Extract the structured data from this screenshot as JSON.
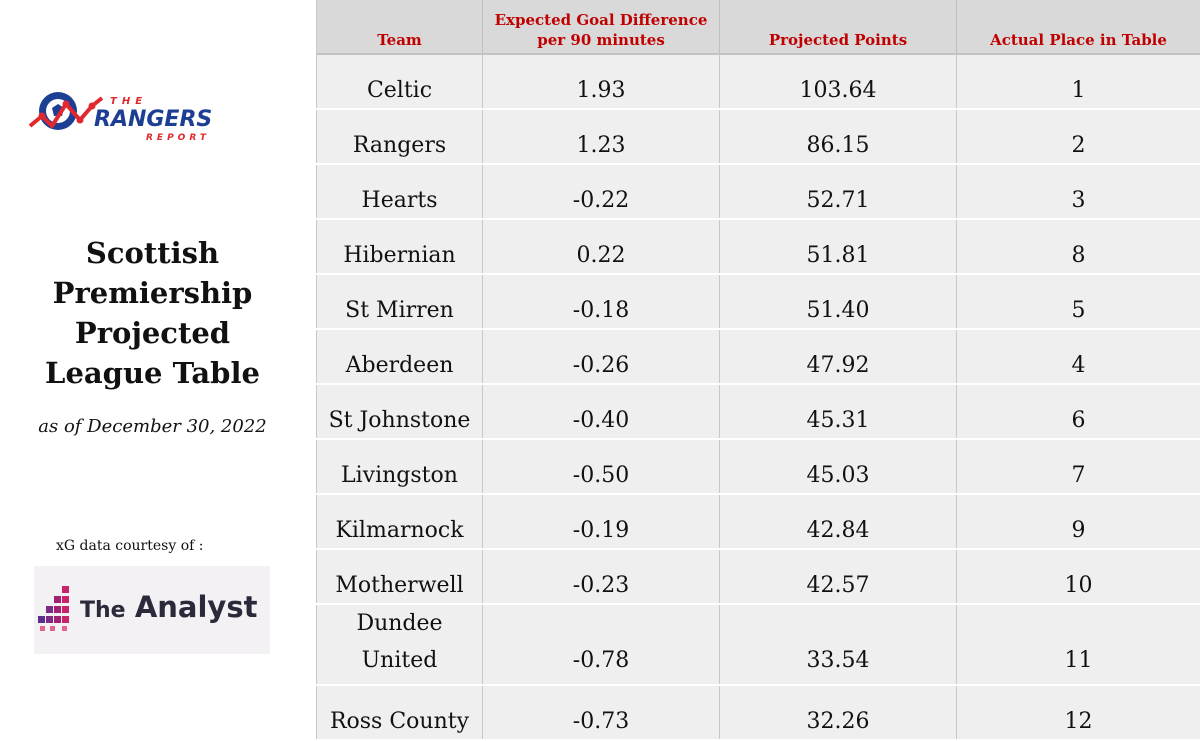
{
  "sidebar": {
    "logo": {
      "line1": "THE",
      "line2": "RANGERS",
      "line3": "REPORT"
    },
    "title_lines": [
      "Scottish",
      "Premiership",
      "Projected",
      "League Table"
    ],
    "subtitle": "as of December 30, 2022",
    "credit": "xG data courtesy of :",
    "analyst_logo": {
      "word1": "The",
      "word2": "Analyst"
    }
  },
  "colors": {
    "header_text": "#c00000",
    "header_bg": "#d9d9d9",
    "row_bg": "#efefef",
    "logo_red": "#e0282e",
    "logo_blue": "#1d3f93",
    "analyst_pink": "#c8246b"
  },
  "table": {
    "headers": [
      "Team",
      "Expected Goal Difference per 90 minutes",
      "Projected Points",
      "Actual Place in Table"
    ],
    "rows": [
      {
        "team": "Celtic",
        "xgd": "1.93",
        "points": "103.64",
        "place": "1"
      },
      {
        "team": "Rangers",
        "xgd": "1.23",
        "points": "86.15",
        "place": "2"
      },
      {
        "team": "Hearts",
        "xgd": "-0.22",
        "points": "52.71",
        "place": "3"
      },
      {
        "team": "Hibernian",
        "xgd": "0.22",
        "points": "51.81",
        "place": "8"
      },
      {
        "team": "St Mirren",
        "xgd": "-0.18",
        "points": "51.40",
        "place": "5"
      },
      {
        "team": "Aberdeen",
        "xgd": "-0.26",
        "points": "47.92",
        "place": "4"
      },
      {
        "team": "St Johnstone",
        "xgd": "-0.40",
        "points": "45.31",
        "place": "6"
      },
      {
        "team": "Livingston",
        "xgd": "-0.50",
        "points": "45.03",
        "place": "7"
      },
      {
        "team": "Kilmarnock",
        "xgd": "-0.19",
        "points": "42.84",
        "place": "9"
      },
      {
        "team": "Motherwell",
        "xgd": "-0.23",
        "points": "42.57",
        "place": "10"
      },
      {
        "team": "Dundee United",
        "xgd": "-0.78",
        "points": "33.54",
        "place": "11"
      },
      {
        "team": "Ross County",
        "xgd": "-0.73",
        "points": "32.26",
        "place": "12"
      }
    ]
  }
}
